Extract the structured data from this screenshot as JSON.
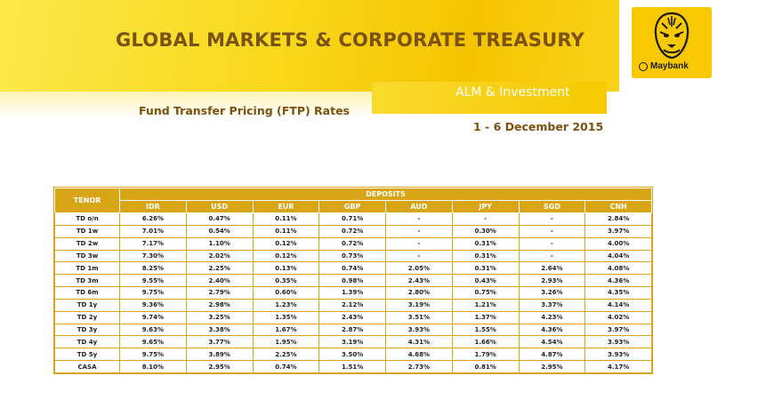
{
  "header": {
    "title": "GLOBAL MARKETS & CORPORATE TREASURY",
    "unit": "ALM & Investment",
    "subtitle": "Fund Transfer Pricing (FTP) Rates",
    "date_range": "1 - 6 December 2015"
  },
  "logo": {
    "brand": "Maybank",
    "icon": "tiger-head-icon"
  },
  "colors": {
    "gold": "#d7a516",
    "banner_yellow": "#f9d81c",
    "title_brown": "#7a5212"
  },
  "table": {
    "tenor_header": "TENOR",
    "group_header": "DEPOSITS",
    "currencies": [
      "IDR",
      "USD",
      "EUR",
      "GBP",
      "AUD",
      "JPY",
      "SGD",
      "CNH"
    ],
    "rows": [
      {
        "tenor": "TD o/n",
        "values": [
          "6.26%",
          "0.47%",
          "0.11%",
          "0.71%",
          "-",
          "-",
          "-",
          "2.84%"
        ]
      },
      {
        "tenor": "TD 1w",
        "values": [
          "7.01%",
          "0.54%",
          "0.11%",
          "0.72%",
          "-",
          "0.30%",
          "-",
          "3.97%"
        ]
      },
      {
        "tenor": "TD 2w",
        "values": [
          "7.17%",
          "1.10%",
          "0.12%",
          "0.72%",
          "-",
          "0.31%",
          "-",
          "4.00%"
        ]
      },
      {
        "tenor": "TD 3w",
        "values": [
          "7.30%",
          "2.02%",
          "0.12%",
          "0.73%",
          "-",
          "0.31%",
          "-",
          "4.04%"
        ]
      },
      {
        "tenor": "TD 1m",
        "values": [
          "8.25%",
          "2.25%",
          "0.13%",
          "0.74%",
          "2.05%",
          "0.31%",
          "2.64%",
          "4.08%"
        ]
      },
      {
        "tenor": "TD 3m",
        "values": [
          "9.55%",
          "2.40%",
          "0.35%",
          "0.98%",
          "2.43%",
          "0.43%",
          "2.93%",
          "4.36%"
        ]
      },
      {
        "tenor": "TD 6m",
        "values": [
          "9.75%",
          "2.79%",
          "0.60%",
          "1.39%",
          "2.80%",
          "0.75%",
          "3.26%",
          "4.35%"
        ]
      },
      {
        "tenor": "TD 1y",
        "values": [
          "9.36%",
          "2.98%",
          "1.23%",
          "2.12%",
          "3.19%",
          "1.21%",
          "3.37%",
          "4.14%"
        ]
      },
      {
        "tenor": "TD 2y",
        "values": [
          "9.74%",
          "3.25%",
          "1.35%",
          "2.43%",
          "3.51%",
          "1.37%",
          "4.23%",
          "4.02%"
        ]
      },
      {
        "tenor": "TD 3y",
        "values": [
          "9.63%",
          "3.38%",
          "1.67%",
          "2.87%",
          "3.93%",
          "1.55%",
          "4.36%",
          "3.97%"
        ]
      },
      {
        "tenor": "TD 4y",
        "values": [
          "9.65%",
          "3.77%",
          "1.95%",
          "3.19%",
          "4.31%",
          "1.66%",
          "4.54%",
          "3.93%"
        ]
      },
      {
        "tenor": "TD 5y",
        "values": [
          "9.75%",
          "3.89%",
          "2.25%",
          "3.50%",
          "4.68%",
          "1.79%",
          "4.87%",
          "3.93%"
        ]
      },
      {
        "tenor": "CASA",
        "values": [
          "8.10%",
          "2.95%",
          "0.74%",
          "1.51%",
          "2.73%",
          "0.81%",
          "2.95%",
          "4.17%"
        ]
      }
    ]
  }
}
